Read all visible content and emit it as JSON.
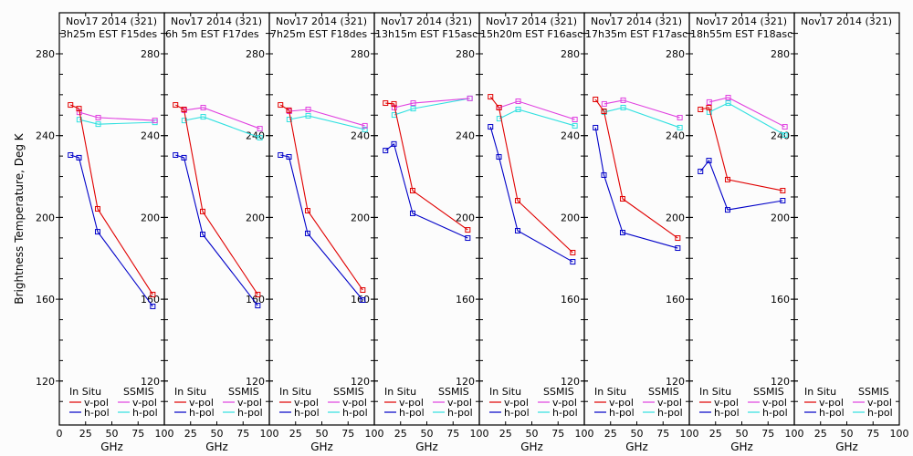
{
  "chart_data": {
    "type": "line",
    "ylabel": "Brightness Temperature, Deg K",
    "xlabel": "GHz",
    "ylim": [
      99,
      300
    ],
    "xlim": [
      0,
      100
    ],
    "yticks": [
      120,
      160,
      200,
      240,
      280
    ],
    "xticks": [
      "0",
      "25",
      "50",
      "75",
      "100"
    ],
    "xticks_after_first": [
      "25",
      "50",
      "75",
      "100"
    ],
    "grid": false,
    "legend": {
      "placement": "bottom",
      "group_in_situ": "In Situ",
      "group_ssmis": "SSMIS",
      "v_pol": "v-pol",
      "h_pol": "h-pol"
    },
    "colors": {
      "insitu_v": "#e00000",
      "insitu_h": "#0000c8",
      "ssmis_v": "#e040e0",
      "ssmis_h": "#30e0e0"
    },
    "insitu_freqs": [
      10.65,
      18.7,
      36.5,
      89
    ],
    "ssmis_freqs": [
      19,
      37,
      91
    ],
    "panels": [
      {
        "title1": "Nov17 2014 (321)",
        "title2": "3h25m  EST  F15des",
        "insitu_v": [
          255.0,
          253.2,
          204.2,
          162.3
        ],
        "insitu_h": [
          230.5,
          229.2,
          193.0,
          156.5
        ],
        "ssmis_v": [
          251.4,
          248.8,
          247.4
        ],
        "ssmis_h": [
          247.8,
          245.6,
          246.5
        ]
      },
      {
        "title1": "Nov17 2014 (321)",
        "title2": "6h 5m  EST  F17des",
        "insitu_v": [
          255.0,
          252.8,
          202.9,
          162.3
        ],
        "insitu_h": [
          230.5,
          229.2,
          191.7,
          156.9
        ],
        "ssmis_v": [
          252.4,
          253.7,
          243.4
        ],
        "ssmis_h": [
          247.4,
          249.2,
          239.0
        ]
      },
      {
        "title1": "Nov17 2014 (321)",
        "title2": "7h25m  EST  F18des",
        "insitu_v": [
          255.0,
          252.4,
          203.3,
          164.5
        ],
        "insitu_h": [
          230.5,
          229.6,
          192.2,
          159.6
        ],
        "ssmis_v": [
          251.9,
          252.8,
          244.8
        ],
        "ssmis_h": [
          247.9,
          249.7,
          243.0
        ]
      },
      {
        "title1": "Nov17 2014 (321)",
        "title2": "13h15m  EST  F15asc",
        "insitu_v": [
          255.9,
          255.5,
          213.1,
          193.9
        ],
        "insitu_h": [
          232.7,
          235.9,
          202.0,
          189.9
        ],
        "ssmis_v": [
          253.7,
          255.9,
          258.2
        ],
        "ssmis_h": [
          250.1,
          253.2,
          258.2
        ]
      },
      {
        "title1": "Nov17 2014 (321)",
        "title2": "15h20m  EST  F16asc",
        "insitu_v": [
          259.0,
          253.7,
          208.2,
          182.8
        ],
        "insitu_h": [
          244.3,
          229.6,
          193.5,
          178.3
        ],
        "ssmis_v": [
          253.7,
          256.8,
          247.9
        ],
        "ssmis_h": [
          248.3,
          252.8,
          244.8
        ]
      },
      {
        "title1": "Nov17 2014 (321)",
        "title2": "17h35m  EST  F17asc",
        "insitu_v": [
          257.7,
          251.9,
          209.1,
          189.9
        ],
        "insitu_h": [
          243.9,
          220.7,
          192.6,
          185.0
        ],
        "ssmis_v": [
          255.5,
          257.3,
          248.8
        ],
        "ssmis_h": [
          251.5,
          253.7,
          243.9
        ]
      },
      {
        "title1": "Nov17 2014 (321)",
        "title2": "18h55m  EST  F18asc",
        "insitu_v": [
          252.8,
          253.7,
          218.5,
          213.1
        ],
        "insitu_h": [
          222.5,
          227.8,
          203.7,
          208.2
        ],
        "ssmis_v": [
          256.4,
          258.6,
          244.3
        ],
        "ssmis_h": [
          251.5,
          255.9,
          240.3
        ]
      },
      {
        "title1": "Nov17 2014 (321)",
        "title2": "",
        "insitu_v": [],
        "insitu_h": [],
        "ssmis_v": [],
        "ssmis_h": []
      }
    ]
  }
}
